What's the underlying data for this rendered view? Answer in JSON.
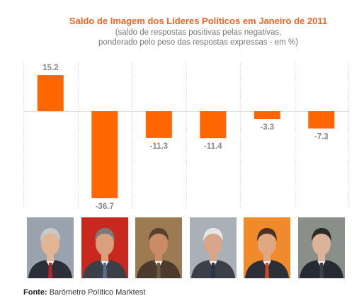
{
  "chart_data": {
    "type": "bar",
    "title": "Saldo de Imagem dos Líderes Políticos em Janeiro de 2011",
    "subtitle": [
      "(saldo de respostas positivas pelas negativas,",
      "ponderado pelo peso das respostas expressas - em %)"
    ],
    "categories": [
      "",
      "",
      "",
      "",
      "",
      ""
    ],
    "values": [
      15.2,
      -36.7,
      -11.3,
      -11.4,
      -3.3,
      -7.3
    ],
    "value_labels": [
      "15.2",
      "-36.7",
      "-11.3",
      "-11.4",
      "-3.3",
      "-7.3"
    ],
    "ylim": [
      -40,
      20
    ],
    "grid": "vertical dotted separators",
    "legend": "none",
    "bar_color": "#ff6600"
  },
  "photos": [
    {
      "bg": "#9aa3ad",
      "suit": "#2a2f3a",
      "face": "#e2b595",
      "hair": "#c9c9c9",
      "tie": "#b3252a"
    },
    {
      "bg": "#c8281e",
      "suit": "#3b3f47",
      "face": "#d9a07e",
      "hair": "#7a7a7a",
      "tie": "#5a6c8c"
    },
    {
      "bg": "#9c7a52",
      "suit": "#4a3b2c",
      "face": "#c98c66",
      "hair": "#5a4030",
      "tie": "#6d5a3a"
    },
    {
      "bg": "#a9b0b8",
      "suit": "#3a3f48",
      "face": "#d8a688",
      "hair": "#e6e6e6",
      "tie": "#2a3344"
    },
    {
      "bg": "#f08a2a",
      "suit": "#2c2f38",
      "face": "#e0a780",
      "hair": "#4a3322",
      "tie": "#c34a2a"
    },
    {
      "bg": "#8a8f8a",
      "suit": "#252a33",
      "face": "#dcb29a",
      "hair": "#2e2a28",
      "tie": "#3a4050"
    }
  ],
  "source": {
    "label": "Fonte:",
    "text": " Barómetro Político Marktest"
  }
}
